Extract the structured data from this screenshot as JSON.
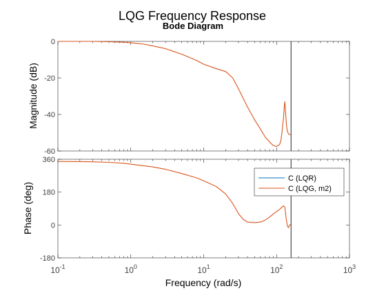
{
  "figure": {
    "title": "LQG Frequency Response",
    "subtitle": "Bode Diagram",
    "xlabel": "Frequency  (rad/s)"
  },
  "chart_data": [
    {
      "type": "line",
      "panel": "magnitude",
      "ylabel": "Magnitude (dB)",
      "xscale": "log",
      "xlim": [
        0.1,
        1000
      ],
      "ylim": [
        -60,
        0
      ],
      "yticks": [
        0,
        -20,
        -40,
        -60
      ],
      "grid": false,
      "vline_x": 158,
      "series": [
        {
          "name": "C (LQG, m2)",
          "color": "#d95319",
          "x": [
            0.1,
            0.3,
            0.5,
            0.8,
            1,
            1.5,
            2,
            3,
            5,
            8,
            10,
            15,
            20,
            25,
            30,
            40,
            50,
            60,
            70,
            80,
            90,
            100,
            110,
            115,
            120,
            125,
            128,
            130,
            133,
            137,
            140,
            145,
            150,
            155
          ],
          "values": [
            0,
            0,
            -0.2,
            -0.5,
            -0.8,
            -1.5,
            -2.5,
            -4,
            -7,
            -10.5,
            -12.5,
            -15,
            -16.5,
            -20,
            -26,
            -36,
            -43,
            -48,
            -52.5,
            -55,
            -57,
            -57.5,
            -56.5,
            -54,
            -48,
            -41,
            -35,
            -33,
            -39,
            -46,
            -49,
            -50.5,
            -51,
            -51
          ]
        }
      ]
    },
    {
      "type": "line",
      "panel": "phase",
      "ylabel": "Phase (deg)",
      "xscale": "log",
      "xlim": [
        0.1,
        1000
      ],
      "ylim": [
        -180,
        360
      ],
      "yticks": [
        360,
        180,
        0,
        -180
      ],
      "grid": false,
      "vline_x": 158,
      "legend": {
        "position": "top-right",
        "entries": [
          "C (LQR)",
          "C (LQG, m2)"
        ]
      },
      "series": [
        {
          "name": "C (LQR)",
          "color": "#0072bd",
          "x": [],
          "values": []
        },
        {
          "name": "C (LQG, m2)",
          "color": "#d95319",
          "x": [
            0.1,
            0.2,
            0.3,
            0.5,
            0.8,
            1,
            2,
            3,
            5,
            8,
            10,
            15,
            20,
            25,
            30,
            35,
            40,
            50,
            60,
            70,
            80,
            90,
            100,
            110,
            120,
            125,
            130,
            135,
            140,
            145,
            150,
            155
          ],
          "values": [
            348,
            347,
            346,
            343,
            338,
            333,
            318,
            305,
            282,
            258,
            242,
            210,
            170,
            118,
            62,
            30,
            16,
            13,
            16,
            27,
            43,
            60,
            74,
            85,
            100,
            105,
            95,
            40,
            0,
            -15,
            -5,
            5
          ]
        }
      ]
    }
  ]
}
